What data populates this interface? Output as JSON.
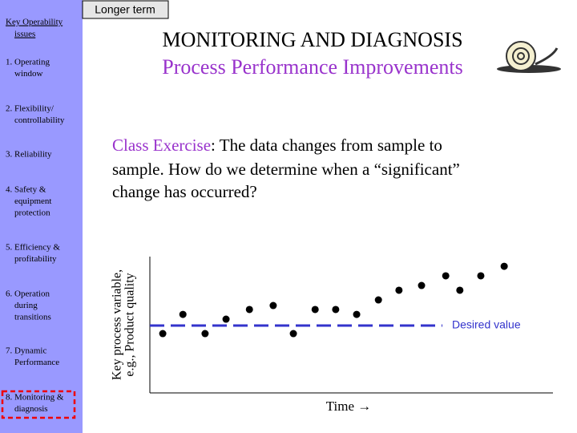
{
  "sidebar": {
    "heading": [
      "Key Operability",
      "issues"
    ],
    "items": [
      [
        "1. Operating",
        "window"
      ],
      [
        "2. Flexibility/",
        "controllability"
      ],
      [
        "3. Reliability"
      ],
      [
        "4. Safety &",
        "equipment",
        "protection"
      ],
      [
        "5. Efficiency &",
        "profitability"
      ],
      [
        "6. Operation",
        "during",
        "transitions"
      ],
      [
        "7. Dynamic",
        "Performance"
      ],
      [
        "8. Monitoring &",
        "diagnosis"
      ]
    ]
  },
  "tab": "Longer term",
  "header": {
    "title": "MONITORING AND DIAGNOSIS",
    "subtitle": "Process Performance Improvements"
  },
  "exercise": {
    "lead": "Class Exercise",
    "lines": [
      ": The data changes from sample to",
      "sample.  How do we determine when a “significant”",
      "change has occurred?"
    ]
  },
  "plot": {
    "y_label": [
      "Key process variable,",
      "e.g., Product quality"
    ],
    "x_label": "Time →",
    "target_label": "Desired value",
    "xlim": [
      0,
      100
    ],
    "ylim": [
      0,
      100
    ],
    "target": 49.4,
    "x": [
      3.2,
      8.2,
      13.7,
      18.9,
      24.7,
      30.6,
      35.6,
      41.0,
      46.1,
      51.3,
      56.7,
      61.8,
      67.4,
      73.4,
      76.9,
      82.1,
      87.9
    ],
    "y": [
      43.5,
      57.6,
      43.5,
      54.1,
      61.2,
      64.1,
      43.5,
      61.2,
      61.2,
      57.6,
      68.2,
      75.3,
      78.8,
      85.9,
      75.3,
      85.9,
      92.9
    ]
  }
}
